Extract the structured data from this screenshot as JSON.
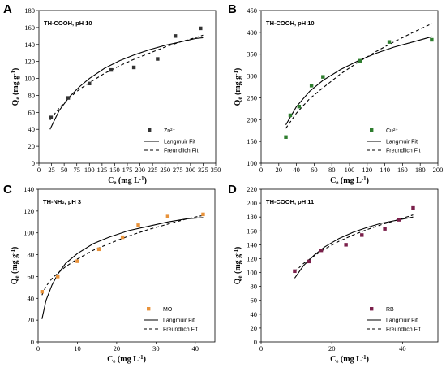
{
  "chart_data": [
    {
      "type": "scatter",
      "panel": "A",
      "title": "TH-COOH, pH 10",
      "xlabel": "Ce (mg L-1)",
      "ylabel": "Qe (mg g-1)",
      "xlim": [
        0,
        350
      ],
      "ylim": [
        0,
        180
      ],
      "xticks": [
        0,
        25,
        50,
        75,
        100,
        125,
        150,
        175,
        200,
        225,
        250,
        275,
        300,
        325,
        350
      ],
      "yticks": [
        0,
        20,
        40,
        60,
        80,
        100,
        120,
        140,
        160,
        180
      ],
      "marker_color": "#333333",
      "legend_position": "bottom-right",
      "points": {
        "name": "Zn²⁺",
        "x": [
          24,
          58,
          100,
          143,
          188,
          235,
          270,
          320
        ],
        "y": [
          54,
          77,
          94,
          110,
          113,
          123,
          150,
          159
        ]
      },
      "langmuir": {
        "name": "Langmuir Fit",
        "x": [
          22,
          40,
          60,
          80,
          100,
          130,
          160,
          190,
          220,
          250,
          280,
          310,
          325
        ],
        "y": [
          40,
          62,
          78,
          90,
          100,
          112,
          121,
          128,
          134,
          139,
          143,
          147,
          148
        ]
      },
      "freundlich": {
        "name": "Freundlich Fit",
        "x": [
          22,
          40,
          60,
          80,
          100,
          130,
          160,
          190,
          220,
          250,
          280,
          310,
          325
        ],
        "y": [
          51,
          65,
          77,
          87,
          95,
          106,
          115,
          123,
          130,
          137,
          143,
          148,
          151
        ]
      }
    },
    {
      "type": "scatter",
      "panel": "B",
      "title": "TH-COOH, pH 10",
      "xlabel": "Ce (mg L-1)",
      "ylabel": "Qe (mg g-1)",
      "xlim": [
        0,
        200
      ],
      "ylim": [
        100,
        450
      ],
      "xticks": [
        0,
        20,
        40,
        60,
        80,
        100,
        120,
        140,
        160,
        180,
        200
      ],
      "yticks": [
        100,
        150,
        200,
        250,
        300,
        350,
        400,
        450
      ],
      "marker_color": "#2e7d2e",
      "legend_position": "bottom-right",
      "points": {
        "name": "Cu²⁺",
        "x": [
          28,
          33,
          43,
          57,
          70,
          112,
          145,
          193
        ],
        "y": [
          160,
          210,
          230,
          278,
          298,
          335,
          378,
          383
        ]
      },
      "langmuir": {
        "name": "Langmuir Fit",
        "x": [
          28,
          40,
          55,
          70,
          90,
          110,
          130,
          150,
          170,
          193
        ],
        "y": [
          188,
          230,
          265,
          290,
          315,
          335,
          352,
          366,
          377,
          390
        ]
      },
      "freundlich": {
        "name": "Freundlich Fit",
        "x": [
          28,
          40,
          55,
          70,
          90,
          110,
          130,
          150,
          170,
          193
        ],
        "y": [
          180,
          215,
          248,
          273,
          305,
          332,
          356,
          378,
          398,
          420
        ]
      }
    },
    {
      "type": "scatter",
      "panel": "C",
      "title": "TH-NH₂, pH 3",
      "xlabel": "Ce (mg L-1)",
      "ylabel": "Qe (mg g-1)",
      "xlim": [
        0,
        45
      ],
      "ylim": [
        0,
        140
      ],
      "xticks": [
        0,
        10,
        20,
        30,
        40
      ],
      "yticks": [
        0,
        20,
        40,
        60,
        80,
        100,
        120,
        140
      ],
      "marker_color": "#e8923a",
      "legend_position": "bottom-right",
      "points": {
        "name": "MO",
        "x": [
          1,
          5,
          10,
          15.5,
          21.5,
          25.5,
          33,
          42
        ],
        "y": [
          46,
          60,
          74,
          85,
          96,
          107,
          115,
          117
        ]
      },
      "langmuir": {
        "name": "Langmuir Fit",
        "x": [
          1,
          2,
          3.5,
          5,
          7,
          10,
          14,
          18,
          23,
          28,
          33,
          38,
          42
        ],
        "y": [
          21,
          38,
          52,
          62,
          72,
          81,
          90,
          96,
          102,
          106,
          110,
          113,
          114
        ]
      },
      "freundlich": {
        "name": "Freundlich Fit",
        "x": [
          1,
          2,
          3.5,
          5,
          7,
          10,
          14,
          18,
          23,
          28,
          33,
          38,
          42
        ],
        "y": [
          43,
          51,
          58,
          63,
          69,
          76,
          84,
          90,
          97,
          103,
          108,
          113,
          116
        ]
      }
    },
    {
      "type": "scatter",
      "panel": "D",
      "title": "TH-COOH, pH 11",
      "xlabel": "Ce (mg L-1)",
      "ylabel": "Qe (mg g-1)",
      "xlim": [
        0,
        50
      ],
      "ylim": [
        0,
        220
      ],
      "xticks": [
        0,
        20,
        40
      ],
      "yticks": [
        0,
        20,
        40,
        60,
        80,
        100,
        120,
        140,
        160,
        180,
        200,
        220
      ],
      "marker_color": "#7a1f4a",
      "legend_position": "bottom-right",
      "points": {
        "name": "RB",
        "x": [
          9.5,
          13.5,
          17,
          24,
          28.5,
          35,
          39,
          43
        ],
        "y": [
          102,
          116,
          132,
          140,
          154,
          163,
          176,
          193
        ]
      },
      "langmuir": {
        "name": "Langmuir Fit",
        "x": [
          9.5,
          12,
          15,
          18,
          22,
          26,
          30,
          34,
          38,
          43
        ],
        "y": [
          92,
          110,
          125,
          137,
          149,
          158,
          165,
          171,
          175,
          180
        ]
      },
      "freundlich": {
        "name": "Freundlich Fit",
        "x": [
          9.5,
          12,
          15,
          18,
          22,
          26,
          30,
          34,
          38,
          43
        ],
        "y": [
          101,
          113,
          124,
          134,
          145,
          154,
          162,
          169,
          175,
          183
        ]
      }
    }
  ]
}
